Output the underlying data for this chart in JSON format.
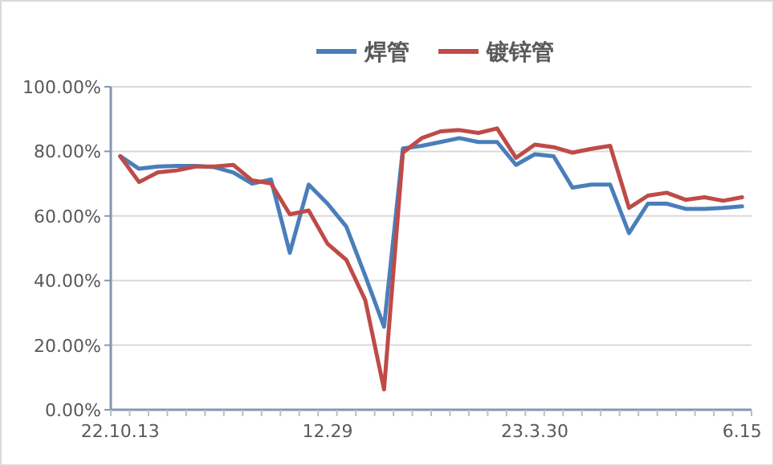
{
  "chart_data": {
    "type": "line",
    "categories": [
      "22.10.13",
      null,
      null,
      null,
      null,
      null,
      null,
      null,
      null,
      null,
      null,
      "12.29",
      null,
      null,
      null,
      null,
      null,
      null,
      null,
      null,
      null,
      null,
      "23.3.30",
      null,
      null,
      null,
      null,
      null,
      null,
      null,
      null,
      null,
      null,
      "6.15"
    ],
    "series": [
      {
        "name": "焊管",
        "color": "#4a7ebb",
        "values": [
          78.5,
          74.6,
          75.3,
          75.5,
          75.5,
          75.1,
          73.5,
          70.0,
          71.3,
          48.6,
          69.7,
          63.8,
          56.7,
          41.5,
          25.7,
          80.9,
          81.7,
          82.9,
          84.1,
          82.9,
          82.9,
          75.8,
          79.1,
          78.5,
          68.8,
          69.7,
          69.7,
          54.7,
          63.8,
          63.8,
          62.2,
          62.2,
          62.5,
          63.0
        ]
      },
      {
        "name": "镀锌管",
        "color": "#be4b48",
        "values": [
          78.5,
          70.5,
          73.5,
          74.1,
          75.3,
          75.3,
          75.8,
          71.0,
          70.1,
          60.5,
          61.7,
          51.4,
          46.4,
          34.0,
          6.3,
          79.6,
          84.1,
          86.2,
          86.6,
          85.7,
          87.1,
          78.0,
          82.1,
          81.3,
          79.6,
          80.8,
          81.7,
          62.5,
          66.3,
          67.2,
          65.0,
          65.8,
          64.7,
          65.8
        ]
      }
    ],
    "ylim": [
      0,
      100
    ],
    "yticks": [
      {
        "value": 0,
        "label": "0.00%"
      },
      {
        "value": 20,
        "label": "20.00%"
      },
      {
        "value": 40,
        "label": "40.00%"
      },
      {
        "value": 60,
        "label": "60.00%"
      },
      {
        "value": 80,
        "label": "80.00%"
      },
      {
        "value": 100,
        "label": "100.00%"
      }
    ],
    "grid": "y",
    "legend": "top",
    "marker": "none",
    "line_style": "solid"
  }
}
